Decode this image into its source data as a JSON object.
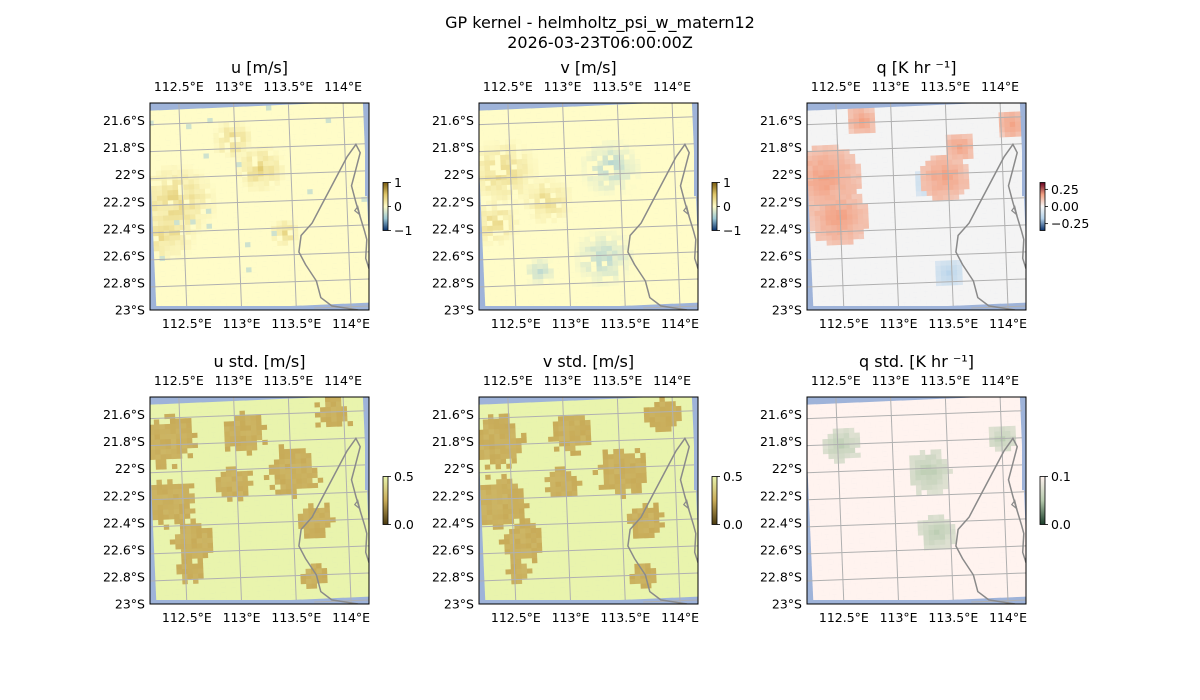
{
  "figure": {
    "title_line1": "GP kernel - helmholtz_psi_w_matern12",
    "title_line2": "2026-03-23T06:00:00Z"
  },
  "colors": {
    "background": "#ffffff",
    "ocean": "#9eb3d9",
    "coast": "#8a8a8a",
    "grid": "#b0b0b0",
    "u_v_base": "#fffcc8",
    "u_v_pos": "#e0c76a",
    "u_v_neg": "#9cc8d4",
    "std_base": "#e9f4ad",
    "std_high": "#c8ab58",
    "q_base": "#f4f4f4",
    "q_pos": "#f3a183",
    "q_neg": "#b4d2ea",
    "qstd_base": "#fff3ef",
    "qstd_high": "#b4c9ac"
  },
  "chart_data": [
    {
      "type": "heatmap",
      "name": "u",
      "title": "u [m/s]",
      "x_ticks": [
        "112.5°E",
        "113°E",
        "113.5°E",
        "114°E"
      ],
      "x_tick_values": [
        112.5,
        113.0,
        113.5,
        114.0
      ],
      "y_ticks": [
        "21.6°S",
        "21.8°S",
        "22°S",
        "22.2°S",
        "22.4°S",
        "22.6°S",
        "22.8°S",
        "23°S"
      ],
      "y_tick_values": [
        -21.6,
        -21.8,
        -22.0,
        -22.2,
        -22.4,
        -22.6,
        -22.8,
        -23.0
      ],
      "colorbar": {
        "ticks": [
          "1",
          "0",
          "−1"
        ],
        "tick_values": [
          1,
          0,
          -1
        ],
        "range": [
          -1,
          1
        ]
      },
      "field_range": [
        0,
        0.6
      ]
    },
    {
      "type": "heatmap",
      "name": "v",
      "title": "v [m/s]",
      "x_ticks": [
        "112.5°E",
        "113°E",
        "113.5°E",
        "114°E"
      ],
      "x_tick_values": [
        112.5,
        113.0,
        113.5,
        114.0
      ],
      "y_ticks": [
        "21.6°S",
        "21.8°S",
        "22°S",
        "22.2°S",
        "22.4°S",
        "22.6°S",
        "22.8°S",
        "23°S"
      ],
      "y_tick_values": [
        -21.6,
        -21.8,
        -22.0,
        -22.2,
        -22.4,
        -22.6,
        -22.8,
        -23.0
      ],
      "colorbar": {
        "ticks": [
          "1",
          "0",
          "−1"
        ],
        "tick_values": [
          1,
          0,
          -1
        ],
        "range": [
          -1,
          1
        ]
      },
      "field_range": [
        -0.5,
        0.5
      ]
    },
    {
      "type": "heatmap",
      "name": "q",
      "title": "q [K hr ⁻¹]",
      "x_ticks": [
        "112.5°E",
        "113°E",
        "113.5°E",
        "114°E"
      ],
      "x_tick_values": [
        112.5,
        113.0,
        113.5,
        114.0
      ],
      "y_ticks": [
        "21.6°S",
        "21.8°S",
        "22°S",
        "22.2°S",
        "22.4°S",
        "22.6°S",
        "22.8°S",
        "23°S"
      ],
      "y_tick_values": [
        -21.6,
        -21.8,
        -22.0,
        -22.2,
        -22.4,
        -22.6,
        -22.8,
        -23.0
      ],
      "colorbar": {
        "ticks": [
          "0.25",
          "0.00",
          "−0.25"
        ],
        "tick_values": [
          0.25,
          0.0,
          -0.25
        ],
        "range": [
          -0.35,
          0.35
        ]
      },
      "field_range": [
        -0.1,
        0.25
      ]
    },
    {
      "type": "heatmap",
      "name": "u_std",
      "title": "u std. [m/s]",
      "x_ticks": [
        "112.5°E",
        "113°E",
        "113.5°E",
        "114°E"
      ],
      "x_tick_values": [
        112.5,
        113.0,
        113.5,
        114.0
      ],
      "y_ticks": [
        "21.6°S",
        "21.8°S",
        "22°S",
        "22.2°S",
        "22.4°S",
        "22.6°S",
        "22.8°S",
        "23°S"
      ],
      "y_tick_values": [
        -21.6,
        -21.8,
        -22.0,
        -22.2,
        -22.4,
        -22.6,
        -22.8,
        -23.0
      ],
      "colorbar": {
        "ticks": [
          "0.5",
          "0.0"
        ],
        "tick_values": [
          0.5,
          0.0
        ],
        "range": [
          0,
          0.5
        ]
      },
      "field_range": [
        0.1,
        0.45
      ]
    },
    {
      "type": "heatmap",
      "name": "v_std",
      "title": "v std. [m/s]",
      "x_ticks": [
        "112.5°E",
        "113°E",
        "113.5°E",
        "114°E"
      ],
      "x_tick_values": [
        112.5,
        113.0,
        113.5,
        114.0
      ],
      "y_ticks": [
        "21.6°S",
        "21.8°S",
        "22°S",
        "22.2°S",
        "22.4°S",
        "22.6°S",
        "22.8°S",
        "23°S"
      ],
      "y_tick_values": [
        -21.6,
        -21.8,
        -22.0,
        -22.2,
        -22.4,
        -22.6,
        -22.8,
        -23.0
      ],
      "colorbar": {
        "ticks": [
          "0.5",
          "0.0"
        ],
        "tick_values": [
          0.5,
          0.0
        ],
        "range": [
          0,
          0.5
        ]
      },
      "field_range": [
        0.1,
        0.45
      ]
    },
    {
      "type": "heatmap",
      "name": "q_std",
      "title": "q std. [K hr ⁻¹]",
      "x_ticks": [
        "112.5°E",
        "113°E",
        "113.5°E",
        "114°E"
      ],
      "x_tick_values": [
        112.5,
        113.0,
        113.5,
        114.0
      ],
      "y_ticks": [
        "21.6°S",
        "21.8°S",
        "22°S",
        "22.2°S",
        "22.4°S",
        "22.6°S",
        "22.8°S",
        "23°S"
      ],
      "y_tick_values": [
        -21.6,
        -21.8,
        -22.0,
        -22.2,
        -22.4,
        -22.6,
        -22.8,
        -23.0
      ],
      "colorbar": {
        "ticks": [
          "0.1",
          "0.0"
        ],
        "tick_values": [
          0.1,
          0.0
        ],
        "range": [
          0,
          0.1
        ]
      },
      "field_range": [
        0,
        0.05
      ]
    }
  ]
}
